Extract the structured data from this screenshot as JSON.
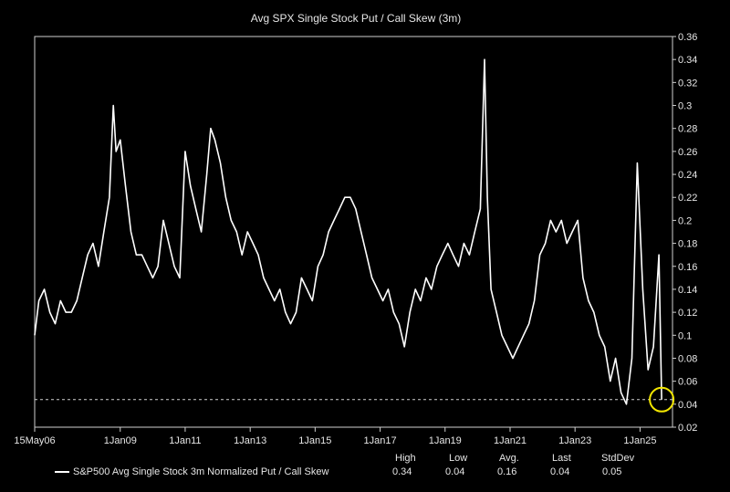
{
  "chart_data": {
    "type": "line",
    "title": "Avg SPX Single Stock Put / Call Skew (3m)",
    "x_ticks": [
      "15May06",
      "1Jan09",
      "1Jan11",
      "1Jan13",
      "1Jan15",
      "1Jan17",
      "1Jan19",
      "1Jan21",
      "1Jan23",
      "1Jan25"
    ],
    "x_range": [
      "2006-05-15",
      "2026-01-01"
    ],
    "ylim": [
      0.02,
      0.36
    ],
    "y_ticks": [
      0.02,
      0.04,
      0.06,
      0.08,
      0.1,
      0.12,
      0.14,
      0.16,
      0.18,
      0.2,
      0.22,
      0.24,
      0.26,
      0.28,
      0.3,
      0.32,
      0.34,
      0.36
    ],
    "y_axis_side": "right",
    "reference_line": {
      "value": 0.044,
      "style": "dashed"
    },
    "highlight": {
      "x": "2025-09-01",
      "y": 0.044,
      "shape": "circle",
      "color": "#f2e600"
    },
    "series": [
      {
        "name": "S&P500 Avg Single Stock 3m Normalized Put / Call Skew",
        "color": "#ffffff",
        "x": [
          "2006-05-15",
          "2006-07-01",
          "2006-09-01",
          "2006-11-01",
          "2007-01-01",
          "2007-03-01",
          "2007-05-01",
          "2007-07-01",
          "2007-09-01",
          "2007-11-01",
          "2008-01-01",
          "2008-03-01",
          "2008-05-01",
          "2008-07-01",
          "2008-09-01",
          "2008-10-15",
          "2008-11-15",
          "2009-01-01",
          "2009-03-01",
          "2009-05-01",
          "2009-07-01",
          "2009-09-01",
          "2009-11-01",
          "2010-01-01",
          "2010-03-01",
          "2010-05-01",
          "2010-07-01",
          "2010-09-01",
          "2010-11-01",
          "2011-01-01",
          "2011-03-01",
          "2011-05-01",
          "2011-07-01",
          "2011-09-01",
          "2011-10-15",
          "2011-12-01",
          "2012-02-01",
          "2012-04-01",
          "2012-06-01",
          "2012-08-01",
          "2012-10-01",
          "2012-12-01",
          "2013-02-01",
          "2013-04-01",
          "2013-06-01",
          "2013-08-01",
          "2013-10-01",
          "2013-12-01",
          "2014-02-01",
          "2014-04-01",
          "2014-06-01",
          "2014-08-01",
          "2014-10-01",
          "2014-12-01",
          "2015-02-01",
          "2015-04-01",
          "2015-06-01",
          "2015-08-01",
          "2015-10-01",
          "2015-12-01",
          "2016-02-01",
          "2016-04-01",
          "2016-06-01",
          "2016-08-01",
          "2016-10-01",
          "2016-12-01",
          "2017-02-01",
          "2017-04-01",
          "2017-06-01",
          "2017-08-01",
          "2017-10-01",
          "2017-12-01",
          "2018-02-01",
          "2018-04-01",
          "2018-06-01",
          "2018-08-01",
          "2018-10-01",
          "2018-12-01",
          "2019-02-01",
          "2019-04-01",
          "2019-06-01",
          "2019-08-01",
          "2019-10-01",
          "2019-12-01",
          "2020-02-01",
          "2020-03-20",
          "2020-04-20",
          "2020-06-01",
          "2020-08-01",
          "2020-10-01",
          "2020-12-01",
          "2021-02-01",
          "2021-04-01",
          "2021-06-01",
          "2021-08-01",
          "2021-10-01",
          "2021-12-01",
          "2022-02-01",
          "2022-04-01",
          "2022-06-01",
          "2022-08-01",
          "2022-10-01",
          "2022-12-01",
          "2023-02-01",
          "2023-04-01",
          "2023-06-01",
          "2023-08-01",
          "2023-10-01",
          "2023-12-01",
          "2024-02-01",
          "2024-04-01",
          "2024-06-01",
          "2024-08-01",
          "2024-10-01",
          "2024-12-01",
          "2025-02-01",
          "2025-04-01",
          "2025-06-01",
          "2025-08-01",
          "2025-09-01"
        ],
        "y": [
          0.1,
          0.13,
          0.14,
          0.12,
          0.11,
          0.13,
          0.12,
          0.12,
          0.13,
          0.15,
          0.17,
          0.18,
          0.16,
          0.19,
          0.22,
          0.3,
          0.26,
          0.27,
          0.23,
          0.19,
          0.17,
          0.17,
          0.16,
          0.15,
          0.16,
          0.2,
          0.18,
          0.16,
          0.15,
          0.26,
          0.23,
          0.21,
          0.19,
          0.24,
          0.28,
          0.27,
          0.25,
          0.22,
          0.2,
          0.19,
          0.17,
          0.19,
          0.18,
          0.17,
          0.15,
          0.14,
          0.13,
          0.14,
          0.12,
          0.11,
          0.12,
          0.15,
          0.14,
          0.13,
          0.16,
          0.17,
          0.19,
          0.2,
          0.21,
          0.22,
          0.22,
          0.21,
          0.19,
          0.17,
          0.15,
          0.14,
          0.13,
          0.14,
          0.12,
          0.11,
          0.09,
          0.12,
          0.14,
          0.13,
          0.15,
          0.14,
          0.16,
          0.17,
          0.18,
          0.17,
          0.16,
          0.18,
          0.17,
          0.19,
          0.21,
          0.34,
          0.22,
          0.14,
          0.12,
          0.1,
          0.09,
          0.08,
          0.09,
          0.1,
          0.11,
          0.13,
          0.17,
          0.18,
          0.2,
          0.19,
          0.2,
          0.18,
          0.19,
          0.2,
          0.15,
          0.13,
          0.12,
          0.1,
          0.09,
          0.06,
          0.08,
          0.05,
          0.04,
          0.08,
          0.25,
          0.14,
          0.07,
          0.09,
          0.17,
          0.044
        ]
      }
    ],
    "stats": {
      "headers": [
        "High",
        "Low",
        "Avg.",
        "Last",
        "StdDev"
      ],
      "values": [
        "0.34",
        "0.04",
        "0.16",
        "0.04",
        "0.05"
      ]
    },
    "legend_placement": "bottom-left"
  }
}
